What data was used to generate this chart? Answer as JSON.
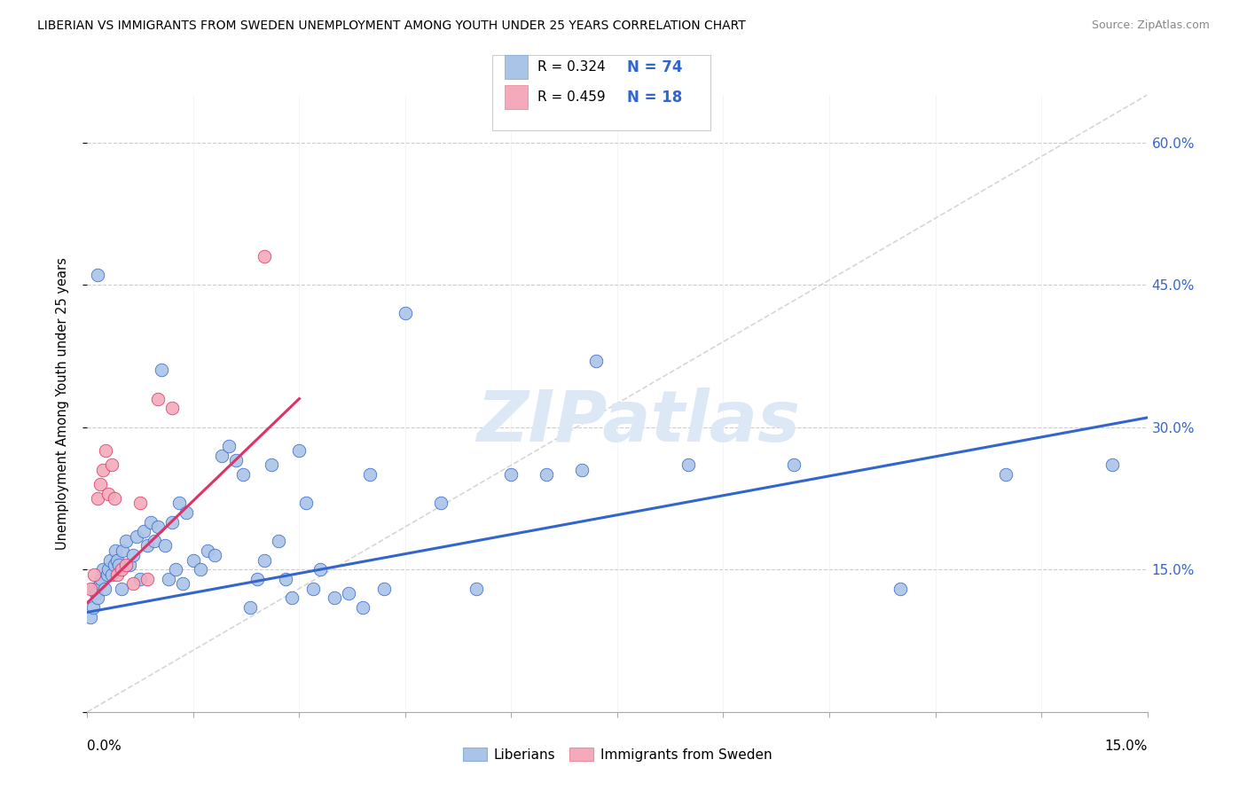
{
  "title": "LIBERIAN VS IMMIGRANTS FROM SWEDEN UNEMPLOYMENT AMONG YOUTH UNDER 25 YEARS CORRELATION CHART",
  "source": "Source: ZipAtlas.com",
  "ylabel": "Unemployment Among Youth under 25 years",
  "xlim": [
    0.0,
    15.0
  ],
  "ylim": [
    0.0,
    65.0
  ],
  "yticks": [
    0.0,
    15.0,
    30.0,
    45.0,
    60.0
  ],
  "liberian_color": "#aac4e8",
  "sweden_color": "#f4aabb",
  "trend_blue": "#3366cc",
  "trend_pink": "#dd3366",
  "diag_color": "#cccccc",
  "watermark_color": "#dce8f5",
  "liberian_x": [
    0.05,
    0.08,
    0.1,
    0.12,
    0.15,
    0.18,
    0.2,
    0.22,
    0.25,
    0.28,
    0.3,
    0.32,
    0.35,
    0.38,
    0.4,
    0.42,
    0.45,
    0.48,
    0.5,
    0.55,
    0.6,
    0.65,
    0.7,
    0.75,
    0.8,
    0.85,
    0.9,
    0.95,
    1.0,
    1.05,
    1.1,
    1.15,
    1.2,
    1.25,
    1.3,
    1.35,
    1.4,
    1.5,
    1.6,
    1.7,
    1.8,
    1.9,
    2.0,
    2.1,
    2.2,
    2.3,
    2.4,
    2.5,
    2.6,
    2.7,
    2.8,
    2.9,
    3.0,
    3.1,
    3.2,
    3.3,
    3.5,
    3.7,
    3.9,
    4.0,
    4.2,
    4.5,
    5.0,
    5.5,
    6.0,
    6.5,
    7.0,
    7.2,
    8.5,
    10.0,
    11.5,
    13.0,
    14.5,
    0.15
  ],
  "liberian_y": [
    10.0,
    11.0,
    13.0,
    12.5,
    12.0,
    13.5,
    14.0,
    15.0,
    13.0,
    14.5,
    15.0,
    16.0,
    14.5,
    15.5,
    17.0,
    16.0,
    15.5,
    13.0,
    17.0,
    18.0,
    15.5,
    16.5,
    18.5,
    14.0,
    19.0,
    17.5,
    20.0,
    18.0,
    19.5,
    36.0,
    17.5,
    14.0,
    20.0,
    15.0,
    22.0,
    13.5,
    21.0,
    16.0,
    15.0,
    17.0,
    16.5,
    27.0,
    28.0,
    26.5,
    25.0,
    11.0,
    14.0,
    16.0,
    26.0,
    18.0,
    14.0,
    12.0,
    27.5,
    22.0,
    13.0,
    15.0,
    12.0,
    12.5,
    11.0,
    25.0,
    13.0,
    42.0,
    22.0,
    13.0,
    25.0,
    25.0,
    25.5,
    37.0,
    26.0,
    26.0,
    13.0,
    25.0,
    26.0,
    46.0
  ],
  "sweden_x": [
    0.05,
    0.1,
    0.15,
    0.18,
    0.22,
    0.26,
    0.3,
    0.34,
    0.38,
    0.42,
    0.48,
    0.55,
    0.65,
    0.75,
    0.85,
    1.0,
    1.2,
    2.5
  ],
  "sweden_y": [
    13.0,
    14.5,
    22.5,
    24.0,
    25.5,
    27.5,
    23.0,
    26.0,
    22.5,
    14.5,
    15.0,
    15.5,
    13.5,
    22.0,
    14.0,
    33.0,
    32.0,
    48.0
  ],
  "blue_trend_x": [
    0.0,
    15.0
  ],
  "blue_trend_y": [
    10.5,
    31.0
  ],
  "pink_trend_x": [
    0.0,
    3.0
  ],
  "pink_trend_y": [
    11.5,
    33.0
  ]
}
